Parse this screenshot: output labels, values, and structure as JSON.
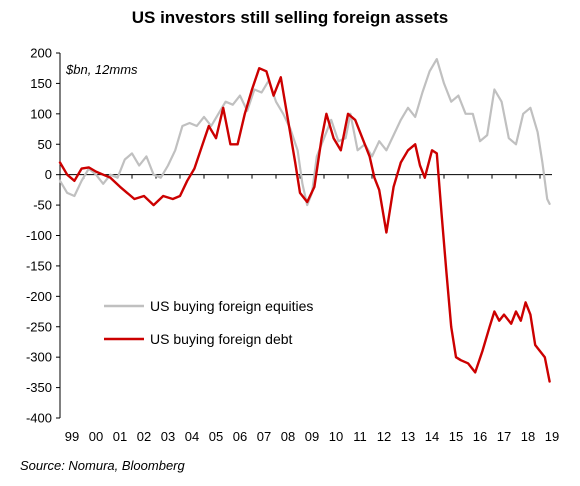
{
  "chart_data": {
    "type": "line",
    "title": "US investors still selling foreign assets",
    "unit_label": "$bn, 12mms",
    "source": "Source: Nomura, Bloomberg",
    "ylim": [
      -400,
      200
    ],
    "yticks": [
      200,
      150,
      100,
      50,
      0,
      -50,
      -100,
      -150,
      -200,
      -250,
      -300,
      -350,
      -400
    ],
    "xlim": [
      1999,
      2019.5
    ],
    "xticks": [
      {
        "year": 1999,
        "label": "99"
      },
      {
        "year": 2000,
        "label": "00"
      },
      {
        "year": 2001,
        "label": "01"
      },
      {
        "year": 2002,
        "label": "02"
      },
      {
        "year": 2003,
        "label": "03"
      },
      {
        "year": 2004,
        "label": "04"
      },
      {
        "year": 2005,
        "label": "05"
      },
      {
        "year": 2006,
        "label": "06"
      },
      {
        "year": 2007,
        "label": "07"
      },
      {
        "year": 2008,
        "label": "08"
      },
      {
        "year": 2009,
        "label": "09"
      },
      {
        "year": 2010,
        "label": "10"
      },
      {
        "year": 2011,
        "label": "11"
      },
      {
        "year": 2012,
        "label": "12"
      },
      {
        "year": 2013,
        "label": "13"
      },
      {
        "year": 2014,
        "label": "14"
      },
      {
        "year": 2015,
        "label": "15"
      },
      {
        "year": 2016,
        "label": "16"
      },
      {
        "year": 2017,
        "label": "17"
      },
      {
        "year": 2018,
        "label": "18"
      },
      {
        "year": 2019,
        "label": "19"
      }
    ],
    "grid": false,
    "legend_position": "bottom-left",
    "series": [
      {
        "name": "US buying foreign equities",
        "color": "#c0c0c0",
        "points": [
          [
            1999.0,
            -10
          ],
          [
            1999.3,
            -30
          ],
          [
            1999.6,
            -35
          ],
          [
            1999.9,
            -10
          ],
          [
            2000.2,
            10
          ],
          [
            2000.5,
            0
          ],
          [
            2000.8,
            -15
          ],
          [
            2001.1,
            0
          ],
          [
            2001.4,
            -5
          ],
          [
            2001.7,
            25
          ],
          [
            2002.0,
            35
          ],
          [
            2002.3,
            15
          ],
          [
            2002.6,
            30
          ],
          [
            2002.9,
            0
          ],
          [
            2003.2,
            -5
          ],
          [
            2003.5,
            15
          ],
          [
            2003.8,
            40
          ],
          [
            2004.1,
            80
          ],
          [
            2004.4,
            85
          ],
          [
            2004.7,
            80
          ],
          [
            2005.0,
            95
          ],
          [
            2005.3,
            80
          ],
          [
            2005.6,
            100
          ],
          [
            2005.9,
            120
          ],
          [
            2006.2,
            115
          ],
          [
            2006.5,
            130
          ],
          [
            2006.8,
            105
          ],
          [
            2007.1,
            140
          ],
          [
            2007.4,
            135
          ],
          [
            2007.7,
            155
          ],
          [
            2008.0,
            120
          ],
          [
            2008.3,
            100
          ],
          [
            2008.6,
            75
          ],
          [
            2008.9,
            40
          ],
          [
            2009.1,
            -15
          ],
          [
            2009.3,
            -50
          ],
          [
            2009.5,
            -30
          ],
          [
            2009.7,
            30
          ],
          [
            2010.0,
            60
          ],
          [
            2010.3,
            90
          ],
          [
            2010.6,
            55
          ],
          [
            2010.9,
            60
          ],
          [
            2011.1,
            100
          ],
          [
            2011.4,
            40
          ],
          [
            2011.7,
            50
          ],
          [
            2012.0,
            30
          ],
          [
            2012.3,
            55
          ],
          [
            2012.6,
            40
          ],
          [
            2012.9,
            65
          ],
          [
            2013.2,
            90
          ],
          [
            2013.5,
            110
          ],
          [
            2013.8,
            95
          ],
          [
            2014.1,
            135
          ],
          [
            2014.4,
            170
          ],
          [
            2014.7,
            190
          ],
          [
            2015.0,
            150
          ],
          [
            2015.3,
            120
          ],
          [
            2015.6,
            130
          ],
          [
            2015.9,
            100
          ],
          [
            2016.2,
            100
          ],
          [
            2016.5,
            55
          ],
          [
            2016.8,
            65
          ],
          [
            2017.1,
            140
          ],
          [
            2017.4,
            120
          ],
          [
            2017.7,
            60
          ],
          [
            2018.0,
            50
          ],
          [
            2018.3,
            100
          ],
          [
            2018.6,
            110
          ],
          [
            2018.9,
            70
          ],
          [
            2019.1,
            20
          ],
          [
            2019.3,
            -40
          ],
          [
            2019.4,
            -48
          ]
        ]
      },
      {
        "name": "US buying foreign debt",
        "color": "#cc0000",
        "points": [
          [
            1999.0,
            20
          ],
          [
            1999.3,
            0
          ],
          [
            1999.6,
            -10
          ],
          [
            1999.9,
            10
          ],
          [
            2000.2,
            12
          ],
          [
            2000.5,
            5
          ],
          [
            2000.8,
            0
          ],
          [
            2001.1,
            -5
          ],
          [
            2001.5,
            -20
          ],
          [
            2001.8,
            -30
          ],
          [
            2002.1,
            -40
          ],
          [
            2002.5,
            -35
          ],
          [
            2002.9,
            -50
          ],
          [
            2003.3,
            -35
          ],
          [
            2003.7,
            -40
          ],
          [
            2004.0,
            -35
          ],
          [
            2004.3,
            -10
          ],
          [
            2004.6,
            10
          ],
          [
            2004.9,
            45
          ],
          [
            2005.2,
            80
          ],
          [
            2005.5,
            60
          ],
          [
            2005.8,
            110
          ],
          [
            2006.1,
            50
          ],
          [
            2006.4,
            50
          ],
          [
            2006.7,
            100
          ],
          [
            2007.0,
            140
          ],
          [
            2007.3,
            175
          ],
          [
            2007.6,
            170
          ],
          [
            2007.9,
            130
          ],
          [
            2008.2,
            160
          ],
          [
            2008.5,
            90
          ],
          [
            2008.8,
            20
          ],
          [
            2009.0,
            -30
          ],
          [
            2009.3,
            -45
          ],
          [
            2009.6,
            -20
          ],
          [
            2009.9,
            60
          ],
          [
            2010.1,
            100
          ],
          [
            2010.4,
            60
          ],
          [
            2010.7,
            40
          ],
          [
            2011.0,
            100
          ],
          [
            2011.3,
            90
          ],
          [
            2011.6,
            60
          ],
          [
            2011.9,
            30
          ],
          [
            2012.1,
            -5
          ],
          [
            2012.3,
            -25
          ],
          [
            2012.6,
            -95
          ],
          [
            2012.9,
            -20
          ],
          [
            2013.2,
            20
          ],
          [
            2013.5,
            40
          ],
          [
            2013.8,
            50
          ],
          [
            2014.0,
            15
          ],
          [
            2014.2,
            -5
          ],
          [
            2014.5,
            40
          ],
          [
            2014.7,
            35
          ],
          [
            2014.9,
            -65
          ],
          [
            2015.1,
            -160
          ],
          [
            2015.3,
            -250
          ],
          [
            2015.5,
            -300
          ],
          [
            2015.7,
            -305
          ],
          [
            2016.0,
            -310
          ],
          [
            2016.3,
            -325
          ],
          [
            2016.6,
            -290
          ],
          [
            2016.9,
            -250
          ],
          [
            2017.1,
            -225
          ],
          [
            2017.3,
            -240
          ],
          [
            2017.5,
            -230
          ],
          [
            2017.8,
            -245
          ],
          [
            2018.0,
            -225
          ],
          [
            2018.2,
            -240
          ],
          [
            2018.4,
            -210
          ],
          [
            2018.6,
            -230
          ],
          [
            2018.8,
            -280
          ],
          [
            2019.0,
            -290
          ],
          [
            2019.2,
            -300
          ],
          [
            2019.4,
            -340
          ]
        ]
      }
    ]
  }
}
